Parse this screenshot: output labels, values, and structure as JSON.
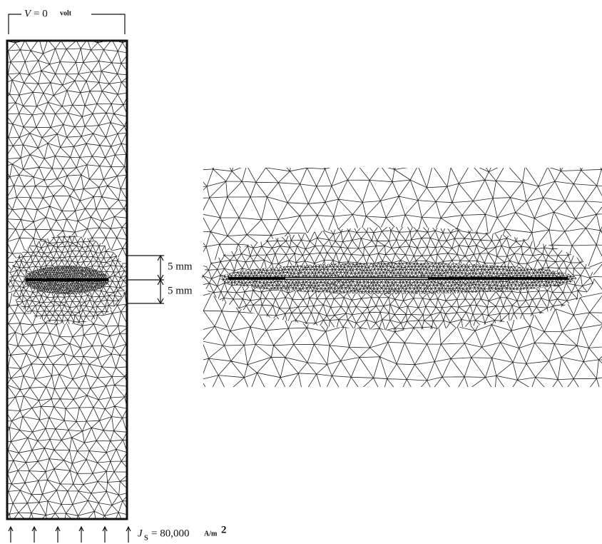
{
  "labels": {
    "top_symbol": "V",
    "top_equation": "= 0",
    "top_unit": "volt",
    "gap_upper": "5 mm",
    "gap_lower": "5 mm",
    "bottom_symbol": "J",
    "bottom_subscript": "s",
    "bottom_equation": "= 80,000",
    "bottom_unit": "A/m",
    "bottom_unit_exponent": "2"
  }
}
